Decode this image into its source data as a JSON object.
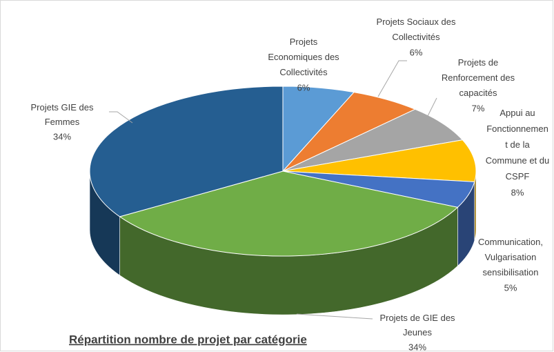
{
  "chart_data": {
    "type": "pie3d",
    "title": "Répartition nombre de projet par catégorie",
    "categories": [
      "Projets Economiques des Collectivités",
      "Projets Sociaux des Collectivités",
      "Projets de Renforcement des capacités",
      "Appui au Fonctionnement de la Commune et du CSPF",
      "Communication, Vulgarisation sensibilisation",
      "Projets de GIE des Jeunes",
      "Projets GIE des Femmes"
    ],
    "values": [
      6,
      6,
      7,
      8,
      5,
      34,
      34
    ],
    "value_labels": [
      "6%",
      "6%",
      "7%",
      "8%",
      "5%",
      "34%",
      "34%"
    ],
    "colors": [
      "#5b9bd5",
      "#ed7d31",
      "#a5a5a5",
      "#ffc000",
      "#4472c4",
      "#70ad47",
      "#255e91"
    ]
  }
}
